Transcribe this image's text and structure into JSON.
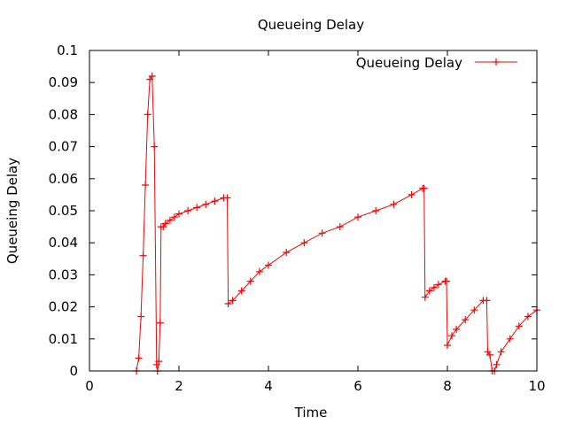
{
  "chart_data": {
    "type": "line",
    "title": "Queueing Delay",
    "xlabel": "Time",
    "ylabel": "Queueing Delay",
    "xlim": [
      0,
      10
    ],
    "ylim": [
      0,
      0.1
    ],
    "xticks": [
      0,
      2,
      4,
      6,
      8,
      10
    ],
    "yticks": [
      0,
      0.01,
      0.02,
      0.03,
      0.04,
      0.05,
      0.06,
      0.07,
      0.08,
      0.09,
      0.1
    ],
    "xtick_labels": [
      "0",
      "2",
      "4",
      "6",
      "8",
      "10"
    ],
    "ytick_labels": [
      "0",
      "0.01",
      "0.02",
      "0.03",
      "0.04",
      "0.05",
      "0.06",
      "0.07",
      "0.08",
      "0.09",
      "0.1"
    ],
    "grid": false,
    "legend": {
      "position": "top-right",
      "entries": [
        "Queueing Delay"
      ]
    },
    "colors": {
      "series": "#ff0000"
    },
    "series": [
      {
        "name": "Queueing Delay",
        "x": [
          1.05,
          1.1,
          1.15,
          1.2,
          1.25,
          1.3,
          1.35,
          1.4,
          1.45,
          1.5,
          1.52,
          1.55,
          1.58,
          1.6,
          1.65,
          1.7,
          1.8,
          1.9,
          2.0,
          2.2,
          2.4,
          2.6,
          2.8,
          3.0,
          3.08,
          3.1,
          3.2,
          3.4,
          3.6,
          3.8,
          4.0,
          4.4,
          4.8,
          5.2,
          5.6,
          6.0,
          6.4,
          6.8,
          7.2,
          7.45,
          7.48,
          7.5,
          7.6,
          7.7,
          7.8,
          7.95,
          7.98,
          8.0,
          8.1,
          8.2,
          8.4,
          8.6,
          8.8,
          8.88,
          8.9,
          8.95,
          9.0,
          9.05,
          9.1,
          9.2,
          9.4,
          9.6,
          9.8,
          10.0
        ],
        "y": [
          0.0,
          0.004,
          0.017,
          0.036,
          0.058,
          0.08,
          0.091,
          0.092,
          0.07,
          0.002,
          0.0,
          0.003,
          0.015,
          0.045,
          0.045,
          0.046,
          0.047,
          0.048,
          0.049,
          0.05,
          0.051,
          0.052,
          0.053,
          0.054,
          0.054,
          0.021,
          0.022,
          0.025,
          0.028,
          0.031,
          0.033,
          0.037,
          0.04,
          0.043,
          0.045,
          0.048,
          0.05,
          0.052,
          0.055,
          0.057,
          0.057,
          0.023,
          0.025,
          0.026,
          0.027,
          0.028,
          0.028,
          0.008,
          0.011,
          0.013,
          0.016,
          0.019,
          0.022,
          0.022,
          0.006,
          0.005,
          0.0,
          0.0,
          0.002,
          0.006,
          0.01,
          0.014,
          0.017,
          0.019
        ]
      }
    ]
  }
}
